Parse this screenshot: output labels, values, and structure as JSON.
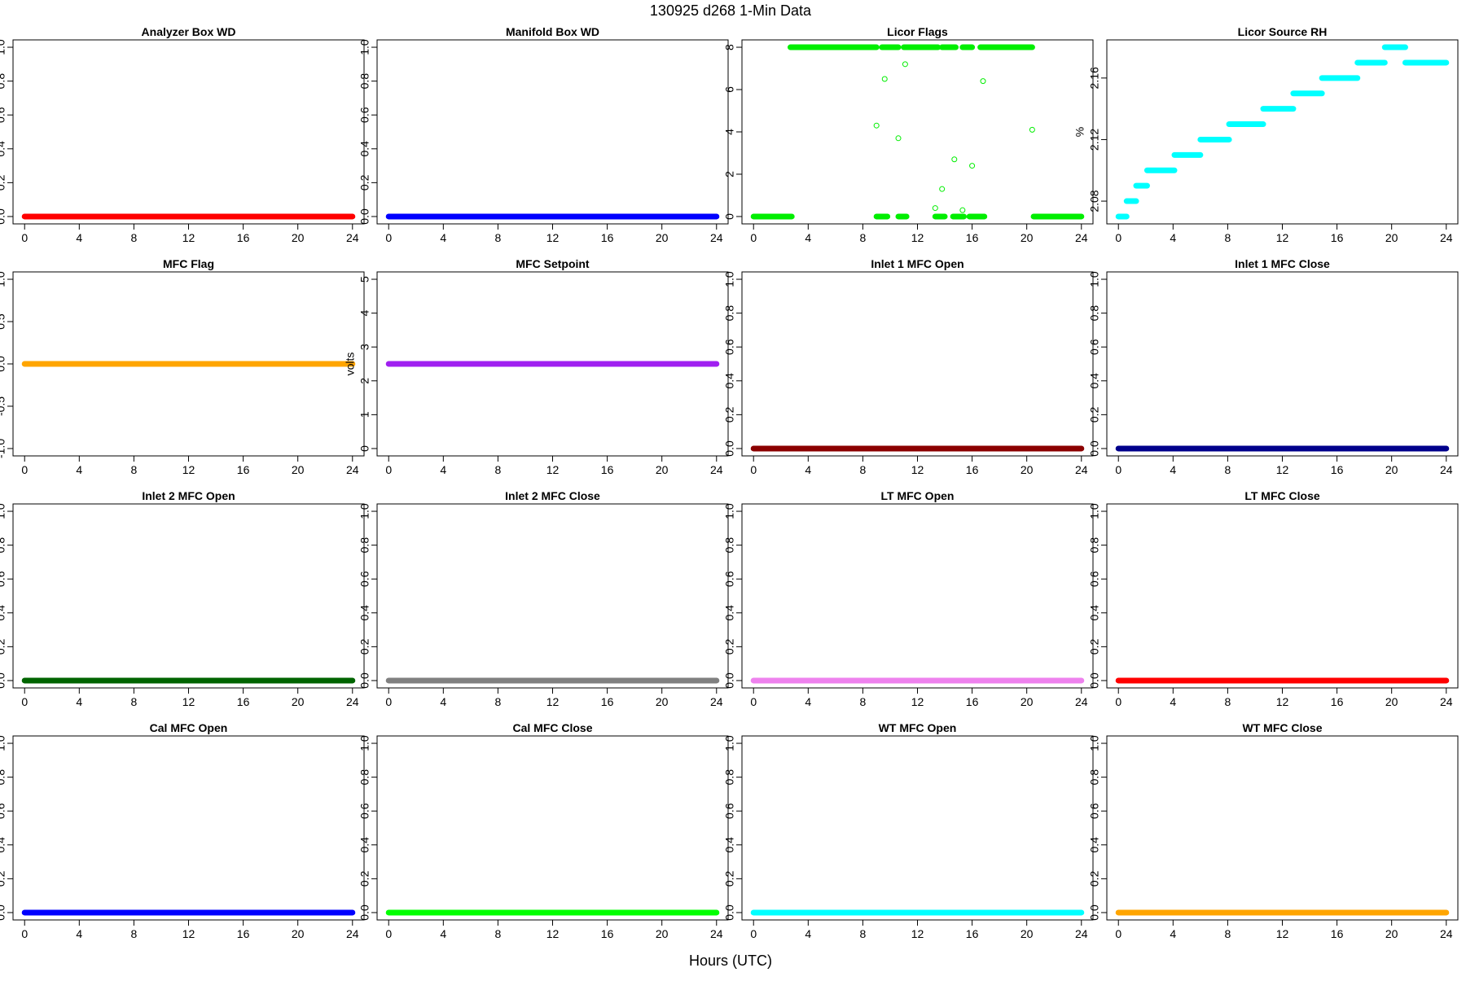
{
  "figure": {
    "title": "130925   d268   1-Min Data",
    "xlabel": "Hours (UTC)"
  },
  "chart_data": [
    {
      "type": "scatter",
      "title": "Analyzer Box WD",
      "ylabel": "",
      "color": "#ff0000",
      "xlim": [
        0,
        24
      ],
      "xticks": [
        0,
        4,
        8,
        12,
        16,
        20,
        24
      ],
      "ylim": [
        0,
        1
      ],
      "yticks": [
        "0.0",
        "0.2",
        "0.4",
        "0.6",
        "0.8",
        "1.0"
      ],
      "segments": [
        {
          "x": [
            0,
            24
          ],
          "y": 0
        }
      ]
    },
    {
      "type": "scatter",
      "title": "Manifold Box WD",
      "ylabel": "",
      "color": "#0000ff",
      "xlim": [
        0,
        24
      ],
      "xticks": [
        0,
        4,
        8,
        12,
        16,
        20,
        24
      ],
      "ylim": [
        0,
        1
      ],
      "yticks": [
        "0.0",
        "0.2",
        "0.4",
        "0.6",
        "0.8",
        "1.0"
      ],
      "segments": [
        {
          "x": [
            0,
            24
          ],
          "y": 0
        }
      ]
    },
    {
      "type": "scatter",
      "title": "Licor Flags",
      "ylabel": "",
      "color": "#00ee00",
      "xlim": [
        0,
        24
      ],
      "xticks": [
        0,
        4,
        8,
        12,
        16,
        20,
        24
      ],
      "ylim": [
        0,
        8
      ],
      "yticks": [
        "0",
        "2",
        "4",
        "6",
        "8"
      ],
      "segments": [
        {
          "x": [
            0,
            2.8
          ],
          "y": 0
        },
        {
          "x": 3.0,
          "y": 0.1,
          "end": 8.9,
          "yend": 8,
          "bridge": true
        },
        {
          "x": [
            2.7,
            9.0
          ],
          "y": 8
        },
        {
          "x": [
            9.4,
            10.6
          ],
          "y": 8
        },
        {
          "x": [
            11.0,
            13.5
          ],
          "y": 8
        },
        {
          "x": [
            13.8,
            14.8
          ],
          "y": 8
        },
        {
          "x": [
            15.3,
            16.0
          ],
          "y": 8
        },
        {
          "x": [
            16.6,
            20.4
          ],
          "y": 8
        },
        {
          "x": [
            9.0,
            9.8
          ],
          "y": 0
        },
        {
          "x": [
            10.6,
            11.2
          ],
          "y": 0
        },
        {
          "x": [
            13.3,
            14.0
          ],
          "y": 0
        },
        {
          "x": [
            14.6,
            15.4
          ],
          "y": 0
        },
        {
          "x": [
            15.8,
            16.9
          ],
          "y": 0
        },
        {
          "x": [
            20.5,
            24
          ],
          "y": 0
        }
      ],
      "points": [
        {
          "x": 9.0,
          "y": 4.3
        },
        {
          "x": 9.6,
          "y": 6.5
        },
        {
          "x": 10.6,
          "y": 3.7
        },
        {
          "x": 11.1,
          "y": 7.2
        },
        {
          "x": 13.3,
          "y": 0.4
        },
        {
          "x": 13.8,
          "y": 1.3
        },
        {
          "x": 14.7,
          "y": 2.7
        },
        {
          "x": 15.3,
          "y": 0.3
        },
        {
          "x": 16.0,
          "y": 2.4
        },
        {
          "x": 16.8,
          "y": 6.4
        },
        {
          "x": 20.4,
          "y": 4.1
        }
      ]
    },
    {
      "type": "scatter",
      "title": "Licor Source RH",
      "ylabel": "%",
      "color": "#00ffff",
      "xlim": [
        0,
        24
      ],
      "xticks": [
        0,
        4,
        8,
        12,
        16,
        20,
        24
      ],
      "ylim": [
        2.07,
        2.18
      ],
      "yticks": [
        "2.08",
        "2.12",
        "2.16"
      ],
      "segments": [
        {
          "x": [
            0,
            0.6
          ],
          "y": 2.07
        },
        {
          "x": [
            0.6,
            1.3
          ],
          "y": 2.08
        },
        {
          "x": [
            1.3,
            2.1
          ],
          "y": 2.09
        },
        {
          "x": [
            2.1,
            4.1
          ],
          "y": 2.1
        },
        {
          "x": [
            4.1,
            6.0
          ],
          "y": 2.11
        },
        {
          "x": [
            6.0,
            8.1
          ],
          "y": 2.12
        },
        {
          "x": [
            8.1,
            10.6
          ],
          "y": 2.13
        },
        {
          "x": [
            10.6,
            12.8
          ],
          "y": 2.14
        },
        {
          "x": [
            12.8,
            14.9
          ],
          "y": 2.15
        },
        {
          "x": [
            14.9,
            17.5
          ],
          "y": 2.16
        },
        {
          "x": [
            17.5,
            19.5
          ],
          "y": 2.17
        },
        {
          "x": [
            19.5,
            21.0
          ],
          "y": 2.18
        },
        {
          "x": [
            21.0,
            24
          ],
          "y": 2.17
        }
      ]
    },
    {
      "type": "scatter",
      "title": "MFC Flag",
      "ylabel": "",
      "color": "#ffa500",
      "xlim": [
        0,
        24
      ],
      "xticks": [
        0,
        4,
        8,
        12,
        16,
        20,
        24
      ],
      "ylim": [
        -1,
        1
      ],
      "yticks": [
        "-1.0",
        "-0.5",
        "0.0",
        "0.5",
        "1.0"
      ],
      "segments": [
        {
          "x": [
            0,
            24
          ],
          "y": 0
        }
      ]
    },
    {
      "type": "scatter",
      "title": "MFC Setpoint",
      "ylabel": "volts",
      "color": "#a020f0",
      "xlim": [
        0,
        24
      ],
      "xticks": [
        0,
        4,
        8,
        12,
        16,
        20,
        24
      ],
      "ylim": [
        0,
        5
      ],
      "yticks": [
        "0",
        "1",
        "2",
        "3",
        "4",
        "5"
      ],
      "segments": [
        {
          "x": [
            0,
            24
          ],
          "y": 2.5
        }
      ]
    },
    {
      "type": "scatter",
      "title": "Inlet 1 MFC Open",
      "ylabel": "",
      "color": "#8b0000",
      "xlim": [
        0,
        24
      ],
      "xticks": [
        0,
        4,
        8,
        12,
        16,
        20,
        24
      ],
      "ylim": [
        0,
        1
      ],
      "yticks": [
        "0.0",
        "0.2",
        "0.4",
        "0.6",
        "0.8",
        "1.0"
      ],
      "segments": [
        {
          "x": [
            0,
            24
          ],
          "y": 0
        }
      ]
    },
    {
      "type": "scatter",
      "title": "Inlet 1 MFC Close",
      "ylabel": "",
      "color": "#00008b",
      "xlim": [
        0,
        24
      ],
      "xticks": [
        0,
        4,
        8,
        12,
        16,
        20,
        24
      ],
      "ylim": [
        0,
        1
      ],
      "yticks": [
        "0.0",
        "0.2",
        "0.4",
        "0.6",
        "0.8",
        "1.0"
      ],
      "segments": [
        {
          "x": [
            0,
            24
          ],
          "y": 0
        }
      ]
    },
    {
      "type": "scatter",
      "title": "Inlet 2 MFC Open",
      "ylabel": "",
      "color": "#006400",
      "xlim": [
        0,
        24
      ],
      "xticks": [
        0,
        4,
        8,
        12,
        16,
        20,
        24
      ],
      "ylim": [
        0,
        1
      ],
      "yticks": [
        "0.0",
        "0.2",
        "0.4",
        "0.6",
        "0.8",
        "1.0"
      ],
      "segments": [
        {
          "x": [
            0,
            24
          ],
          "y": 0
        }
      ]
    },
    {
      "type": "scatter",
      "title": "Inlet 2 MFC Close",
      "ylabel": "",
      "color": "#808080",
      "xlim": [
        0,
        24
      ],
      "xticks": [
        0,
        4,
        8,
        12,
        16,
        20,
        24
      ],
      "ylim": [
        0,
        1
      ],
      "yticks": [
        "0.0",
        "0.2",
        "0.4",
        "0.6",
        "0.8",
        "1.0"
      ],
      "segments": [
        {
          "x": [
            0,
            24
          ],
          "y": 0
        }
      ]
    },
    {
      "type": "scatter",
      "title": "LT MFC Open",
      "ylabel": "",
      "color": "#ee82ee",
      "xlim": [
        0,
        24
      ],
      "xticks": [
        0,
        4,
        8,
        12,
        16,
        20,
        24
      ],
      "ylim": [
        0,
        1
      ],
      "yticks": [
        "0.0",
        "0.2",
        "0.4",
        "0.6",
        "0.8",
        "1.0"
      ],
      "segments": [
        {
          "x": [
            0,
            24
          ],
          "y": 0
        }
      ]
    },
    {
      "type": "scatter",
      "title": "LT MFC Close",
      "ylabel": "",
      "color": "#ff0000",
      "xlim": [
        0,
        24
      ],
      "xticks": [
        0,
        4,
        8,
        12,
        16,
        20,
        24
      ],
      "ylim": [
        0,
        1
      ],
      "yticks": [
        "0.0",
        "0.2",
        "0.4",
        "0.6",
        "0.8",
        "1.0"
      ],
      "segments": [
        {
          "x": [
            0,
            24
          ],
          "y": 0
        }
      ]
    },
    {
      "type": "scatter",
      "title": "Cal MFC Open",
      "ylabel": "",
      "color": "#0000ff",
      "xlim": [
        0,
        24
      ],
      "xticks": [
        0,
        4,
        8,
        12,
        16,
        20,
        24
      ],
      "ylim": [
        0,
        1
      ],
      "yticks": [
        "0.0",
        "0.2",
        "0.4",
        "0.6",
        "0.8",
        "1.0"
      ],
      "segments": [
        {
          "x": [
            0,
            24
          ],
          "y": 0
        }
      ]
    },
    {
      "type": "scatter",
      "title": "Cal MFC Close",
      "ylabel": "",
      "color": "#00ff00",
      "xlim": [
        0,
        24
      ],
      "xticks": [
        0,
        4,
        8,
        12,
        16,
        20,
        24
      ],
      "ylim": [
        0,
        1
      ],
      "yticks": [
        "0.0",
        "0.2",
        "0.4",
        "0.6",
        "0.8",
        "1.0"
      ],
      "segments": [
        {
          "x": [
            0,
            24
          ],
          "y": 0
        }
      ]
    },
    {
      "type": "scatter",
      "title": "WT MFC Open",
      "ylabel": "",
      "color": "#00ffff",
      "xlim": [
        0,
        24
      ],
      "xticks": [
        0,
        4,
        8,
        12,
        16,
        20,
        24
      ],
      "ylim": [
        0,
        1
      ],
      "yticks": [
        "0.0",
        "0.2",
        "0.4",
        "0.6",
        "0.8",
        "1.0"
      ],
      "segments": [
        {
          "x": [
            0,
            24
          ],
          "y": 0
        }
      ]
    },
    {
      "type": "scatter",
      "title": "WT MFC Close",
      "ylabel": "",
      "color": "#ffa500",
      "xlim": [
        0,
        24
      ],
      "xticks": [
        0,
        4,
        8,
        12,
        16,
        20,
        24
      ],
      "ylim": [
        0,
        1
      ],
      "yticks": [
        "0.0",
        "0.2",
        "0.4",
        "0.6",
        "0.8",
        "1.0"
      ],
      "segments": [
        {
          "x": [
            0,
            24
          ],
          "y": 0
        }
      ]
    }
  ]
}
